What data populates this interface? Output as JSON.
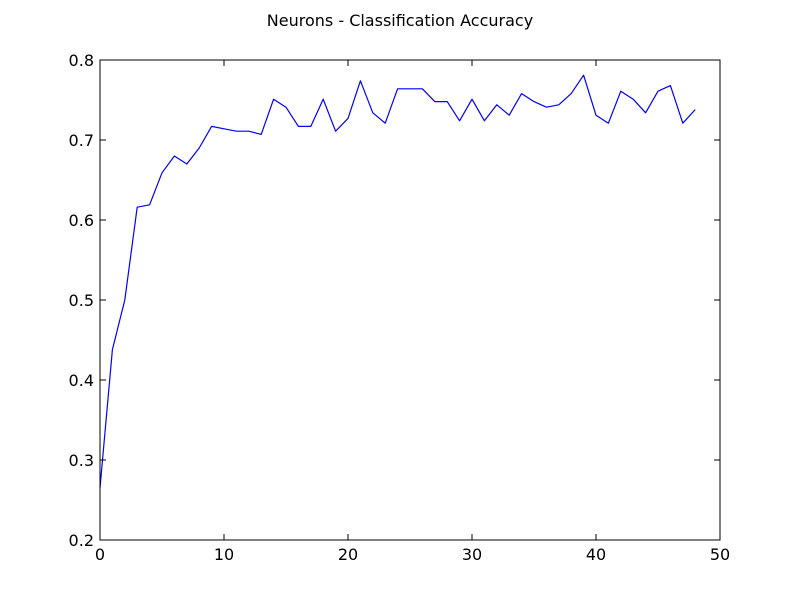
{
  "chart_data": {
    "type": "line",
    "title": "Neurons - Classification Accuracy",
    "xlabel": "",
    "ylabel": "",
    "xlim": [
      0,
      50
    ],
    "ylim": [
      0.2,
      0.8
    ],
    "xticks": [
      0,
      10,
      20,
      30,
      40,
      50
    ],
    "yticks": [
      0.2,
      0.3,
      0.4,
      0.5,
      0.6,
      0.7,
      0.8
    ],
    "xtick_labels": [
      "0",
      "10",
      "20",
      "30",
      "40",
      "50"
    ],
    "ytick_labels": [
      "0.2",
      "0.3",
      "0.4",
      "0.5",
      "0.6",
      "0.7",
      "0.8"
    ],
    "grid": false,
    "legend": "none",
    "series": [
      {
        "color": "#0000ff",
        "x": [
          0,
          1,
          2,
          3,
          4,
          5,
          6,
          7,
          8,
          9,
          10,
          11,
          12,
          13,
          14,
          15,
          16,
          17,
          18,
          19,
          20,
          21,
          22,
          23,
          24,
          25,
          26,
          27,
          28,
          29,
          30,
          31,
          32,
          33,
          34,
          35,
          36,
          37,
          38,
          39,
          40,
          41,
          42,
          43,
          44,
          45,
          46,
          47,
          48
        ],
        "y": [
          0.265,
          0.438,
          0.5,
          0.616,
          0.619,
          0.659,
          0.68,
          0.67,
          0.69,
          0.717,
          0.714,
          0.711,
          0.711,
          0.707,
          0.751,
          0.741,
          0.717,
          0.717,
          0.751,
          0.711,
          0.727,
          0.774,
          0.734,
          0.721,
          0.764,
          0.764,
          0.764,
          0.748,
          0.748,
          0.724,
          0.751,
          0.724,
          0.744,
          0.731,
          0.758,
          0.748,
          0.741,
          0.744,
          0.758,
          0.781,
          0.731,
          0.721,
          0.761,
          0.751,
          0.734,
          0.761,
          0.768,
          0.721,
          0.738
        ]
      }
    ]
  }
}
